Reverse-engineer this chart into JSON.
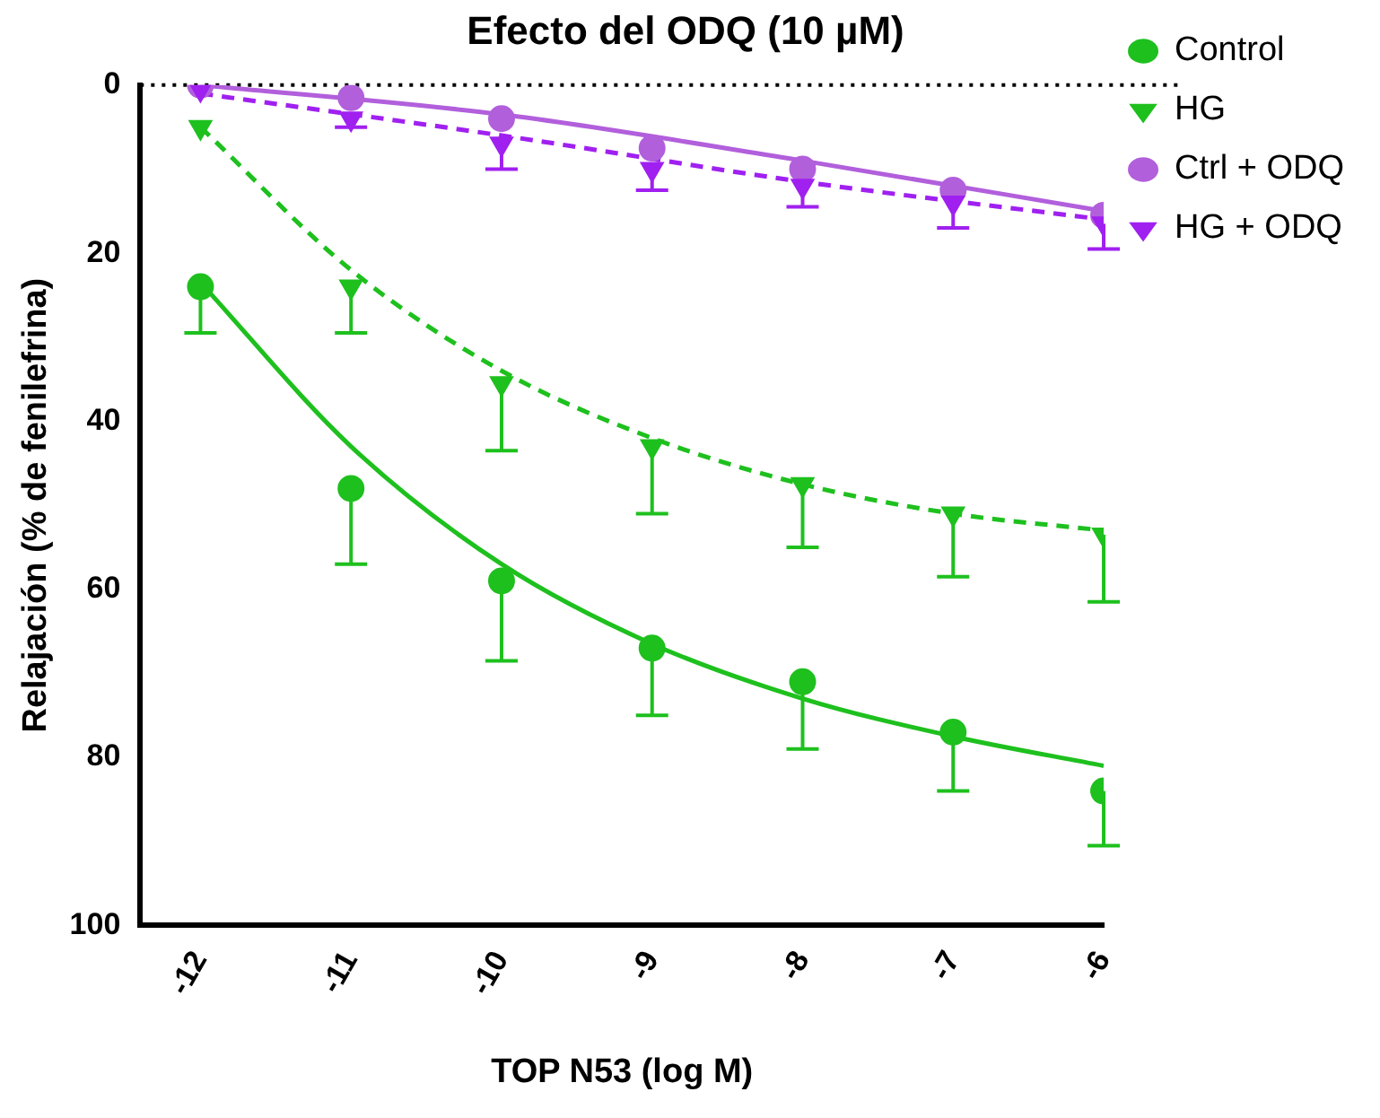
{
  "chart_data": {
    "type": "scatter",
    "title": "Efecto del ODQ (10 µM)",
    "xlabel": "TOP N53 (log M)",
    "ylabel": "Relajación (% de fenilefrina)",
    "xlim": [
      -12.4,
      -6
    ],
    "xticks": [
      -12,
      -11,
      -10,
      -9,
      -8,
      -7,
      -6
    ],
    "ylim": [
      100,
      0
    ],
    "yticks": [
      0,
      20,
      40,
      60,
      80,
      100
    ],
    "grid": false,
    "legend": "right",
    "ref_lines": [
      {
        "axis": "y",
        "value": 0,
        "color": "#000000",
        "line_style": "dotted"
      }
    ],
    "series": [
      {
        "name": "Control",
        "type": "scatter",
        "marker": "circle",
        "color": "#1ec01e",
        "x": [
          -12,
          -11,
          -10,
          -9,
          -8,
          -7,
          -6
        ],
        "values": [
          24,
          48,
          59,
          67,
          71,
          77,
          84
        ],
        "errors": [
          [
            24,
            29.5
          ],
          [
            48,
            57
          ],
          [
            59,
            68.5
          ],
          [
            67,
            75
          ],
          [
            71,
            79
          ],
          [
            77,
            84
          ],
          [
            84,
            90.5
          ]
        ]
      },
      {
        "name": "HG",
        "type": "scatter",
        "marker": "triangle",
        "color": "#1ec01e",
        "x": [
          -12,
          -11,
          -10,
          -9,
          -8,
          -7,
          -6
        ],
        "values": [
          5,
          24,
          35.5,
          43,
          47.5,
          51,
          53.5
        ],
        "errors": [
          null,
          [
            24,
            29.5
          ],
          [
            35.5,
            43.5
          ],
          [
            43,
            51
          ],
          [
            47.5,
            55
          ],
          [
            51,
            58.5
          ],
          [
            53.5,
            61.5
          ]
        ]
      },
      {
        "name": "Ctrl + ODQ",
        "type": "scatter",
        "marker": "circle",
        "color": "#b25fdc",
        "x": [
          -12,
          -11,
          -10,
          -9,
          -8,
          -7,
          -6
        ],
        "values": [
          0,
          1.5,
          4,
          7.5,
          10,
          12.5,
          15.5
        ]
      },
      {
        "name": "HG + ODQ",
        "type": "scatter",
        "marker": "triangle",
        "color": "#a020f0",
        "x": [
          -12,
          -11,
          -10,
          -9,
          -8,
          -7,
          -6
        ],
        "values": [
          0.5,
          4,
          7,
          10,
          12,
          14,
          16.5
        ],
        "errors": [
          null,
          [
            4,
            5
          ],
          [
            7,
            10
          ],
          [
            10,
            12.5
          ],
          [
            12,
            14.5
          ],
          [
            14,
            17
          ],
          [
            16.5,
            19.5
          ]
        ]
      },
      {
        "type": "line",
        "line_style": "solid",
        "color": "#1ec01e",
        "x": [
          -12,
          -11,
          -10,
          -9,
          -8,
          -7,
          -6
        ],
        "values": [
          23.5,
          43,
          57,
          66.5,
          73,
          77.5,
          81
        ]
      },
      {
        "type": "line",
        "line_style": "dashed",
        "color": "#1ec01e",
        "x": [
          -12,
          -11,
          -10,
          -9,
          -8,
          -7,
          -6
        ],
        "values": [
          5,
          22,
          34,
          42,
          47.5,
          51,
          53
        ]
      },
      {
        "type": "line",
        "line_style": "solid",
        "color": "#b25fdc",
        "x": [
          -12,
          -10,
          -8,
          -6
        ],
        "values": [
          0,
          3.5,
          9,
          15
        ]
      },
      {
        "type": "line",
        "line_style": "dashed",
        "color": "#a020f0",
        "x": [
          -12,
          -10,
          -8,
          -6
        ],
        "values": [
          1,
          6,
          11.5,
          16
        ]
      }
    ]
  }
}
